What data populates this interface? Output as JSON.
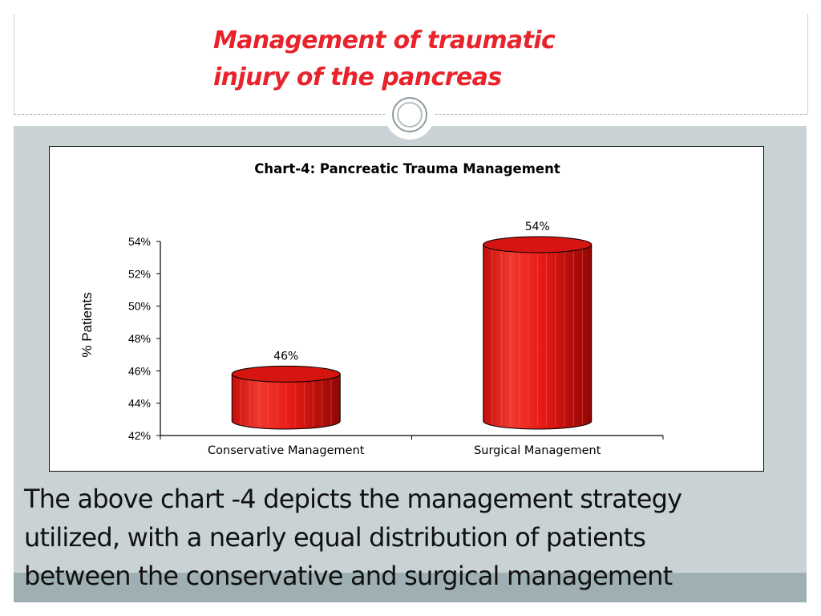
{
  "slide": {
    "title_line1": "Management of traumatic",
    "title_line2": "injury of the pancreas",
    "caption_line1": "The above chart -4 depicts the management strategy",
    "caption_line2": "utilized, with a nearly equal distribution of patients",
    "caption_line3": "between the conservative and surgical management",
    "colors": {
      "title": "#e8232b",
      "band": "#c9d3d6",
      "bar": "#e61a14"
    }
  },
  "chart_data": {
    "type": "bar",
    "title": "Chart-4: Pancreatic Trauma Management",
    "ylabel": "% Patients",
    "xlabel": "",
    "categories": [
      "Conservative Management",
      "Surgical Management"
    ],
    "values": [
      46,
      54
    ],
    "data_labels": [
      "46%",
      "54%"
    ],
    "ylim": [
      42,
      54
    ],
    "yticks": [
      "42%",
      "44%",
      "46%",
      "48%",
      "50%",
      "52%",
      "54%"
    ],
    "ytick_values": [
      42,
      44,
      46,
      48,
      50,
      52,
      54
    ],
    "grid": false,
    "style": "3d-cylinder"
  }
}
